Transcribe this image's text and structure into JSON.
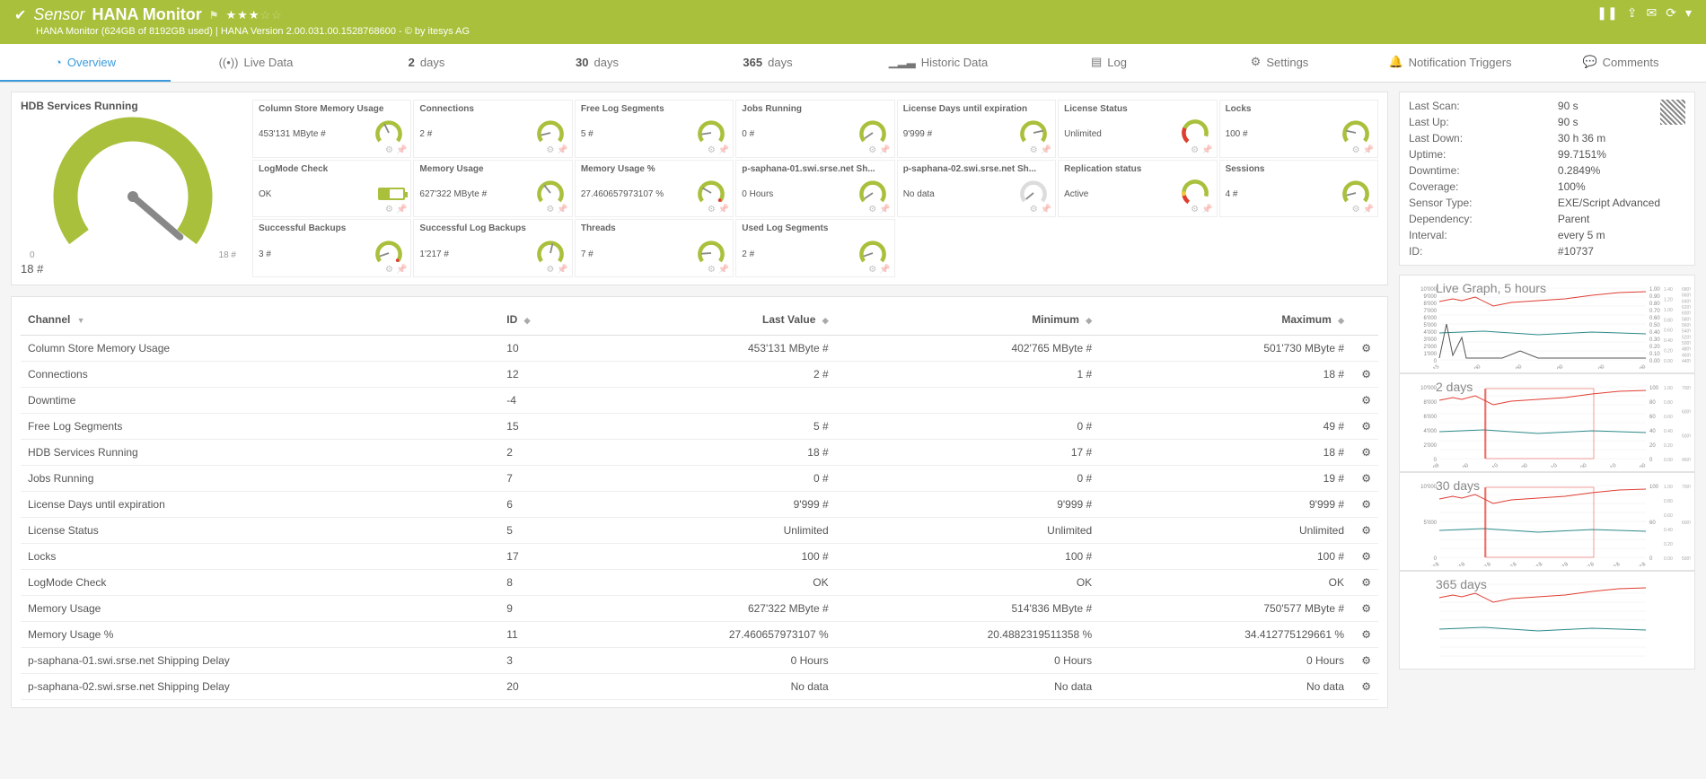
{
  "colors": {
    "brand_green": "#a8c03b",
    "tab_blue": "#3b9bdc",
    "warn_red": "#e03c31",
    "warn_yellow": "#f2c744",
    "gray_gauge": "#dcdcdc",
    "text": "#555555",
    "panel_border": "#e3e3e3"
  },
  "header": {
    "sensor_prefix": "Sensor",
    "sensor_name": "HANA Monitor",
    "stars_filled": 3,
    "stars_total": 5,
    "subtitle": "HANA Monitor (624GB of 8192GB used) | HANA Version 2.00.031.00.1528768600 - © by itesys AG"
  },
  "tabs": [
    {
      "label": "Overview",
      "icon": "overview",
      "active": true
    },
    {
      "label": "Live Data",
      "icon": "live"
    },
    {
      "label": "days",
      "num": "2"
    },
    {
      "label": "days",
      "num": "30"
    },
    {
      "label": "days",
      "num": "365"
    },
    {
      "label": "Historic Data",
      "icon": "historic"
    },
    {
      "label": "Log",
      "icon": "log"
    },
    {
      "label": "Settings",
      "icon": "settings"
    },
    {
      "label": "Notification Triggers",
      "icon": "bell"
    },
    {
      "label": "Comments",
      "icon": "comment"
    }
  ],
  "big_gauge": {
    "title": "HDB Services Running",
    "value": "18 #",
    "scale_min": "0",
    "scale_max": "18 #",
    "fill_pct": 100
  },
  "gauges": [
    {
      "title": "Column Store Memory Usage",
      "value": "453'131 MByte #",
      "fill": 40,
      "type": "arc"
    },
    {
      "title": "Connections",
      "value": "2 #",
      "fill": 10,
      "type": "arc"
    },
    {
      "title": "Free Log Segments",
      "value": "5 #",
      "fill": 12,
      "type": "arc"
    },
    {
      "title": "Jobs Running",
      "value": "0 #",
      "fill": 2,
      "type": "arc"
    },
    {
      "title": "License Days until expiration",
      "value": "9'999 #",
      "fill": 80,
      "type": "arc"
    },
    {
      "title": "License Status",
      "value": "Unlimited",
      "fill": 15,
      "type": "arc-donut-red"
    },
    {
      "title": "Locks",
      "value": "100 #",
      "fill": 20,
      "type": "arc"
    },
    {
      "title": "LogMode Check",
      "value": "OK",
      "fill": 40,
      "type": "battery"
    },
    {
      "title": "Memory Usage",
      "value": "627'322 MByte #",
      "fill": 35,
      "type": "arc"
    },
    {
      "title": "Memory Usage %",
      "value": "27.460657973107 %",
      "fill": 27,
      "type": "arc-reddot"
    },
    {
      "title": "p-saphana-01.swi.srse.net Sh...",
      "value": "0 Hours",
      "fill": 2,
      "type": "arc"
    },
    {
      "title": "p-saphana-02.swi.srse.net Sh...",
      "value": "No data",
      "fill": 0,
      "type": "arc-gray"
    },
    {
      "title": "Replication status",
      "value": "Active",
      "fill": 12,
      "type": "arc-donut-yellow"
    },
    {
      "title": "Sessions",
      "value": "4 #",
      "fill": 10,
      "type": "arc"
    },
    {
      "title": "Successful Backups",
      "value": "3 #",
      "fill": 8,
      "type": "arc-reddot"
    },
    {
      "title": "Successful Log Backups",
      "value": "1'217 #",
      "fill": 55,
      "type": "arc"
    },
    {
      "title": "Threads",
      "value": "7 #",
      "fill": 14,
      "type": "arc"
    },
    {
      "title": "Used Log Segments",
      "value": "2 #",
      "fill": 8,
      "type": "arc"
    }
  ],
  "table": {
    "columns": [
      "Channel",
      "ID",
      "Last Value",
      "Minimum",
      "Maximum"
    ],
    "sort_col": 0,
    "rows": [
      {
        "c": "Column Store Memory Usage",
        "id": "10",
        "last": "453'131 MByte #",
        "min": "402'765 MByte #",
        "max": "501'730 MByte #"
      },
      {
        "c": "Connections",
        "id": "12",
        "last": "2 #",
        "min": "1 #",
        "max": "18 #"
      },
      {
        "c": "Downtime",
        "id": "-4",
        "last": "",
        "min": "",
        "max": ""
      },
      {
        "c": "Free Log Segments",
        "id": "15",
        "last": "5 #",
        "min": "0 #",
        "max": "49 #"
      },
      {
        "c": "HDB Services Running",
        "id": "2",
        "last": "18 #",
        "min": "17 #",
        "max": "18 #"
      },
      {
        "c": "Jobs Running",
        "id": "7",
        "last": "0 #",
        "min": "0 #",
        "max": "19 #"
      },
      {
        "c": "License Days until expiration",
        "id": "6",
        "last": "9'999 #",
        "min": "9'999 #",
        "max": "9'999 #"
      },
      {
        "c": "License Status",
        "id": "5",
        "last": "Unlimited",
        "min": "Unlimited",
        "max": "Unlimited"
      },
      {
        "c": "Locks",
        "id": "17",
        "last": "100 #",
        "min": "100 #",
        "max": "100 #"
      },
      {
        "c": "LogMode Check",
        "id": "8",
        "last": "OK",
        "min": "OK",
        "max": "OK"
      },
      {
        "c": "Memory Usage",
        "id": "9",
        "last": "627'322 MByte #",
        "min": "514'836 MByte #",
        "max": "750'577 MByte #"
      },
      {
        "c": "Memory Usage %",
        "id": "11",
        "last": "27.460657973107 %",
        "min": "20.4882319511358 %",
        "max": "34.412775129661 %"
      },
      {
        "c": "p-saphana-01.swi.srse.net Shipping Delay",
        "id": "3",
        "last": "0 Hours",
        "min": "0 Hours",
        "max": "0 Hours"
      },
      {
        "c": "p-saphana-02.swi.srse.net Shipping Delay",
        "id": "20",
        "last": "No data",
        "min": "No data",
        "max": "No data"
      }
    ]
  },
  "info": [
    {
      "k": "Last Scan:",
      "v": "90 s"
    },
    {
      "k": "Last Up:",
      "v": "90 s"
    },
    {
      "k": "Last Down:",
      "v": "30 h 36 m"
    },
    {
      "k": "Uptime:",
      "v": "99.7151%"
    },
    {
      "k": "Downtime:",
      "v": "0.2849%"
    },
    {
      "k": "Coverage:",
      "v": "100%"
    },
    {
      "k": "Sensor Type:",
      "v": "EXE/Script Advanced"
    },
    {
      "k": "Dependency:",
      "v": "Parent"
    },
    {
      "k": "Interval:",
      "v": "every  5 m"
    },
    {
      "k": "ID:",
      "v": "#10737"
    }
  ],
  "side_charts": [
    {
      "title": "Live Graph, 5 hours",
      "yl_max": "10'000",
      "yl_ticks": [
        "10'000",
        "9'000",
        "8'000",
        "7'000",
        "6'000",
        "5'000",
        "4'000",
        "3'000",
        "2'000",
        "1'000",
        "0"
      ],
      "yr_ticks": [
        "1.00",
        "0.90",
        "0.80",
        "0.70",
        "0.60",
        "0.50",
        "0.40",
        "0.30",
        "0.20",
        "0.10",
        "0.00"
      ],
      "x_ticks": [
        "04:15",
        "05:00",
        "06:00",
        "07:00",
        "08:00",
        "09:00"
      ],
      "yr2_ticks": [
        "1.40",
        "1.20",
        "1.00",
        "0.80",
        "0.60",
        "0.40",
        "0.20",
        "0.00"
      ],
      "yr3_ticks": [
        "680'000",
        "660'000",
        "640'000",
        "620'000",
        "600'000",
        "580'000",
        "560'000",
        "540'000",
        "520'000",
        "500'000",
        "480'000",
        "460'000",
        "440'000"
      ],
      "yr4_ticks": [
        "25.0",
        "20.0",
        "15.0",
        "10.0",
        "5.0",
        "0.0"
      ]
    },
    {
      "title": "2 days",
      "yl_ticks": [
        "10'000",
        "8'000",
        "6'000",
        "4'000",
        "2'000",
        "0"
      ],
      "x_ticks": [
        "30.09",
        "12:00",
        "01.10",
        "00:00",
        "01.10",
        "12:00",
        "02.10",
        "00:00"
      ],
      "yr_ticks": [
        "100",
        "80",
        "60",
        "40",
        "20",
        "0"
      ],
      "yr2_ticks": [
        "1.00",
        "0.80",
        "0.60",
        "0.40",
        "0.20",
        "0.00"
      ],
      "yr3_ticks": [
        "700'000",
        "600'000",
        "500'000",
        "450'000"
      ]
    },
    {
      "title": "30 days",
      "yl_ticks": [
        "10'000",
        "5'000",
        "0"
      ],
      "x_ticks": [
        "04.09.2018",
        "10.09.2018",
        "13.09.2018",
        "16.09.2018",
        "19.09.2018",
        "22.09.2018",
        "25.09.2018",
        "28.09.2018",
        "01.10.2018"
      ],
      "yr_ticks": [
        "100",
        "60",
        "0"
      ],
      "yr2_ticks": [
        "1.00",
        "0.80",
        "0.60",
        "0.40",
        "0.20",
        "0.00"
      ],
      "yr3_ticks": [
        "700'000",
        "600'000",
        "500'000"
      ]
    },
    {
      "title": "365 days",
      "yl_ticks": [],
      "x_ticks": [],
      "yr_ticks": []
    }
  ]
}
